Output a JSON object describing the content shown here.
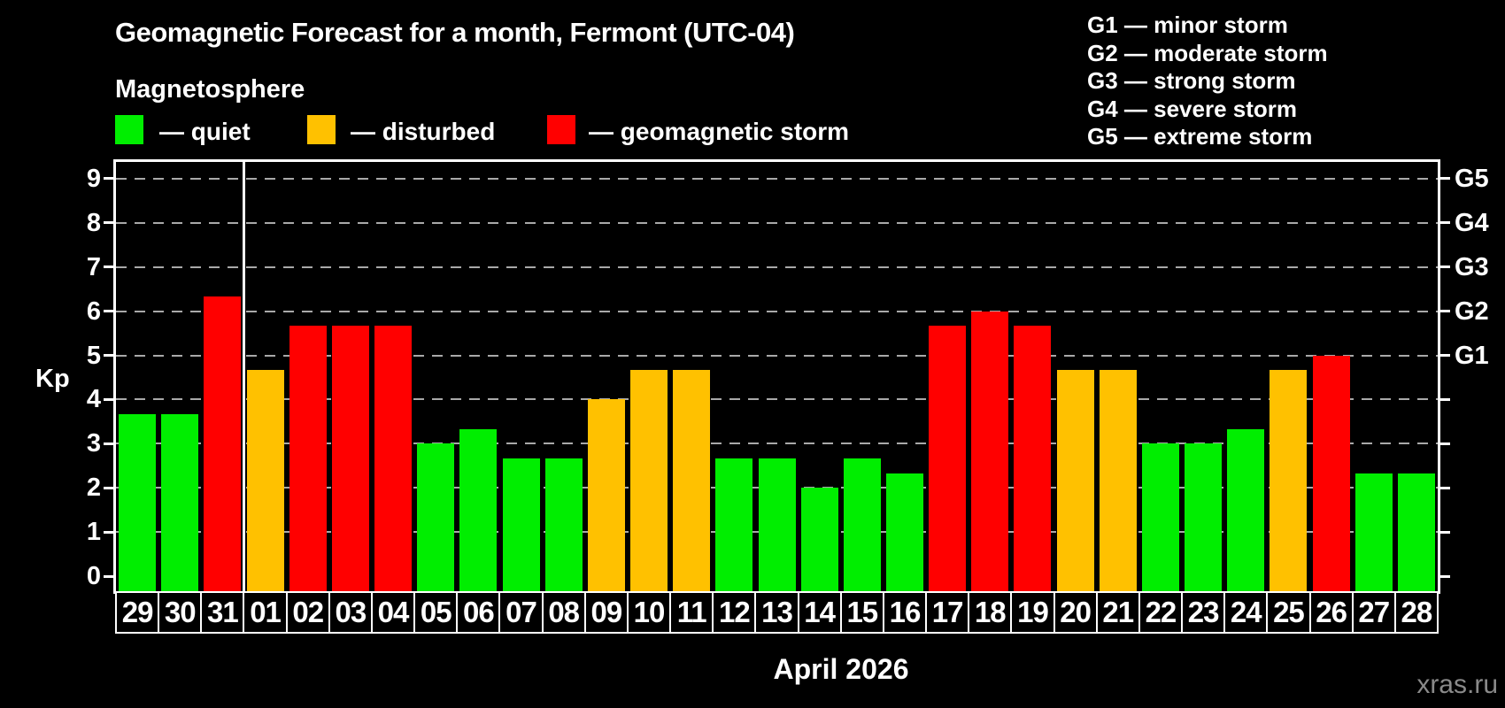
{
  "header": {
    "title": "Geomagnetic Forecast for a month, Fermont (UTC-04)",
    "subtitle": "Magnetosphere"
  },
  "legend": {
    "items": [
      {
        "status": "quiet",
        "label": "— quiet",
        "color": "#00ee00"
      },
      {
        "status": "disturbed",
        "label": "— disturbed",
        "color": "#ffc100"
      },
      {
        "status": "storm",
        "label": "— geomagnetic storm",
        "color": "#ff0000"
      }
    ]
  },
  "g_legend": {
    "lines": [
      "G1 — minor storm",
      "G2 — moderate storm",
      "G3 — strong storm",
      "G4 — severe storm",
      "G5 — extreme storm"
    ]
  },
  "watermark": "xras.ru",
  "chart_data": {
    "type": "bar",
    "title": "Geomagnetic Forecast for a month, Fermont (UTC-04)",
    "ylabel": "Kp",
    "xlabel": "April 2026",
    "month_label": "April 2026",
    "ylim": [
      0,
      9
    ],
    "yticks": [
      0,
      1,
      2,
      3,
      4,
      5,
      6,
      7,
      8,
      9
    ],
    "grid": "dashed horizontal at Kp 1-9",
    "legend_position": "top",
    "right_axis": {
      "labels": [
        "G1",
        "G2",
        "G3",
        "G4",
        "G5"
      ],
      "values": [
        5,
        6,
        7,
        8,
        9
      ]
    },
    "categories": [
      "29",
      "30",
      "31",
      "01",
      "02",
      "03",
      "04",
      "05",
      "06",
      "07",
      "08",
      "09",
      "10",
      "11",
      "12",
      "13",
      "14",
      "15",
      "16",
      "17",
      "18",
      "19",
      "20",
      "21",
      "22",
      "23",
      "24",
      "25",
      "26",
      "27",
      "28"
    ],
    "values": [
      3.67,
      3.67,
      6.33,
      4.67,
      5.67,
      5.67,
      5.67,
      3.0,
      3.33,
      2.67,
      2.67,
      4.0,
      4.67,
      4.67,
      2.67,
      2.67,
      2.0,
      2.67,
      2.33,
      5.67,
      6.0,
      5.67,
      4.67,
      4.67,
      3.0,
      3.0,
      3.33,
      4.67,
      5.0,
      2.33,
      2.33
    ],
    "statuses": [
      "quiet",
      "quiet",
      "storm",
      "disturbed",
      "storm",
      "storm",
      "storm",
      "quiet",
      "quiet",
      "quiet",
      "quiet",
      "disturbed",
      "disturbed",
      "disturbed",
      "quiet",
      "quiet",
      "quiet",
      "quiet",
      "quiet",
      "storm",
      "storm",
      "storm",
      "disturbed",
      "disturbed",
      "quiet",
      "quiet",
      "quiet",
      "disturbed",
      "storm",
      "quiet",
      "quiet"
    ],
    "status_colors": {
      "quiet": "#00ee00",
      "disturbed": "#ffc100",
      "storm": "#ff0000"
    },
    "month_separator_after_index": 2
  }
}
